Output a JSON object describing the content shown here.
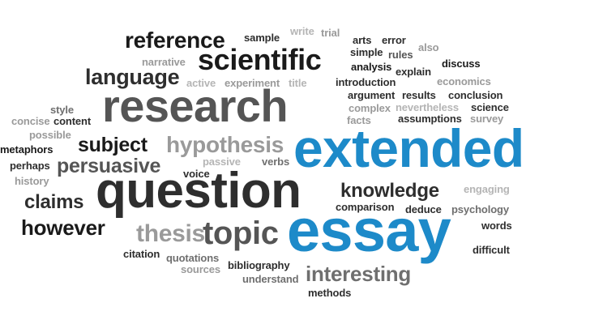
{
  "words": {
    "extended": "extended",
    "essay": "essay",
    "question": "question",
    "research": "research",
    "scientific": "scientific",
    "topic": "topic",
    "reference": "reference",
    "language": "language",
    "hypothesis": "hypothesis",
    "persuasive": "persuasive",
    "subject": "subject",
    "knowledge": "knowledge",
    "however": "however",
    "claims": "claims",
    "thesis": "thesis",
    "interesting": "interesting",
    "sample": "sample",
    "write": "write",
    "trial": "trial",
    "arts": "arts",
    "error": "error",
    "also": "also",
    "simple": "simple",
    "rules": "rules",
    "discuss": "discuss",
    "narrative": "narrative",
    "analysis": "analysis",
    "explain": "explain",
    "active": "active",
    "experiment": "experiment",
    "title": "title",
    "introduction": "introduction",
    "economics": "economics",
    "argument": "argument",
    "results": "results",
    "conclusion": "conclusion",
    "style": "style",
    "complex": "complex",
    "nevertheless": "nevertheless",
    "science": "science",
    "concise": "concise",
    "content": "content",
    "facts": "facts",
    "assumptions": "assumptions",
    "survey": "survey",
    "possible": "possible",
    "metaphors": "metaphors",
    "perhaps": "perhaps",
    "passive": "passive",
    "history": "history",
    "verbs": "verbs",
    "voice": "voice",
    "engaging": "engaging",
    "comparison": "comparison",
    "deduce": "deduce",
    "psychology": "psychology",
    "words": "words",
    "citation": "citation",
    "quotations": "quotations",
    "bibliography": "bibliography",
    "sources": "sources",
    "understand": "understand",
    "difficult": "difficult",
    "methods": "methods"
  }
}
